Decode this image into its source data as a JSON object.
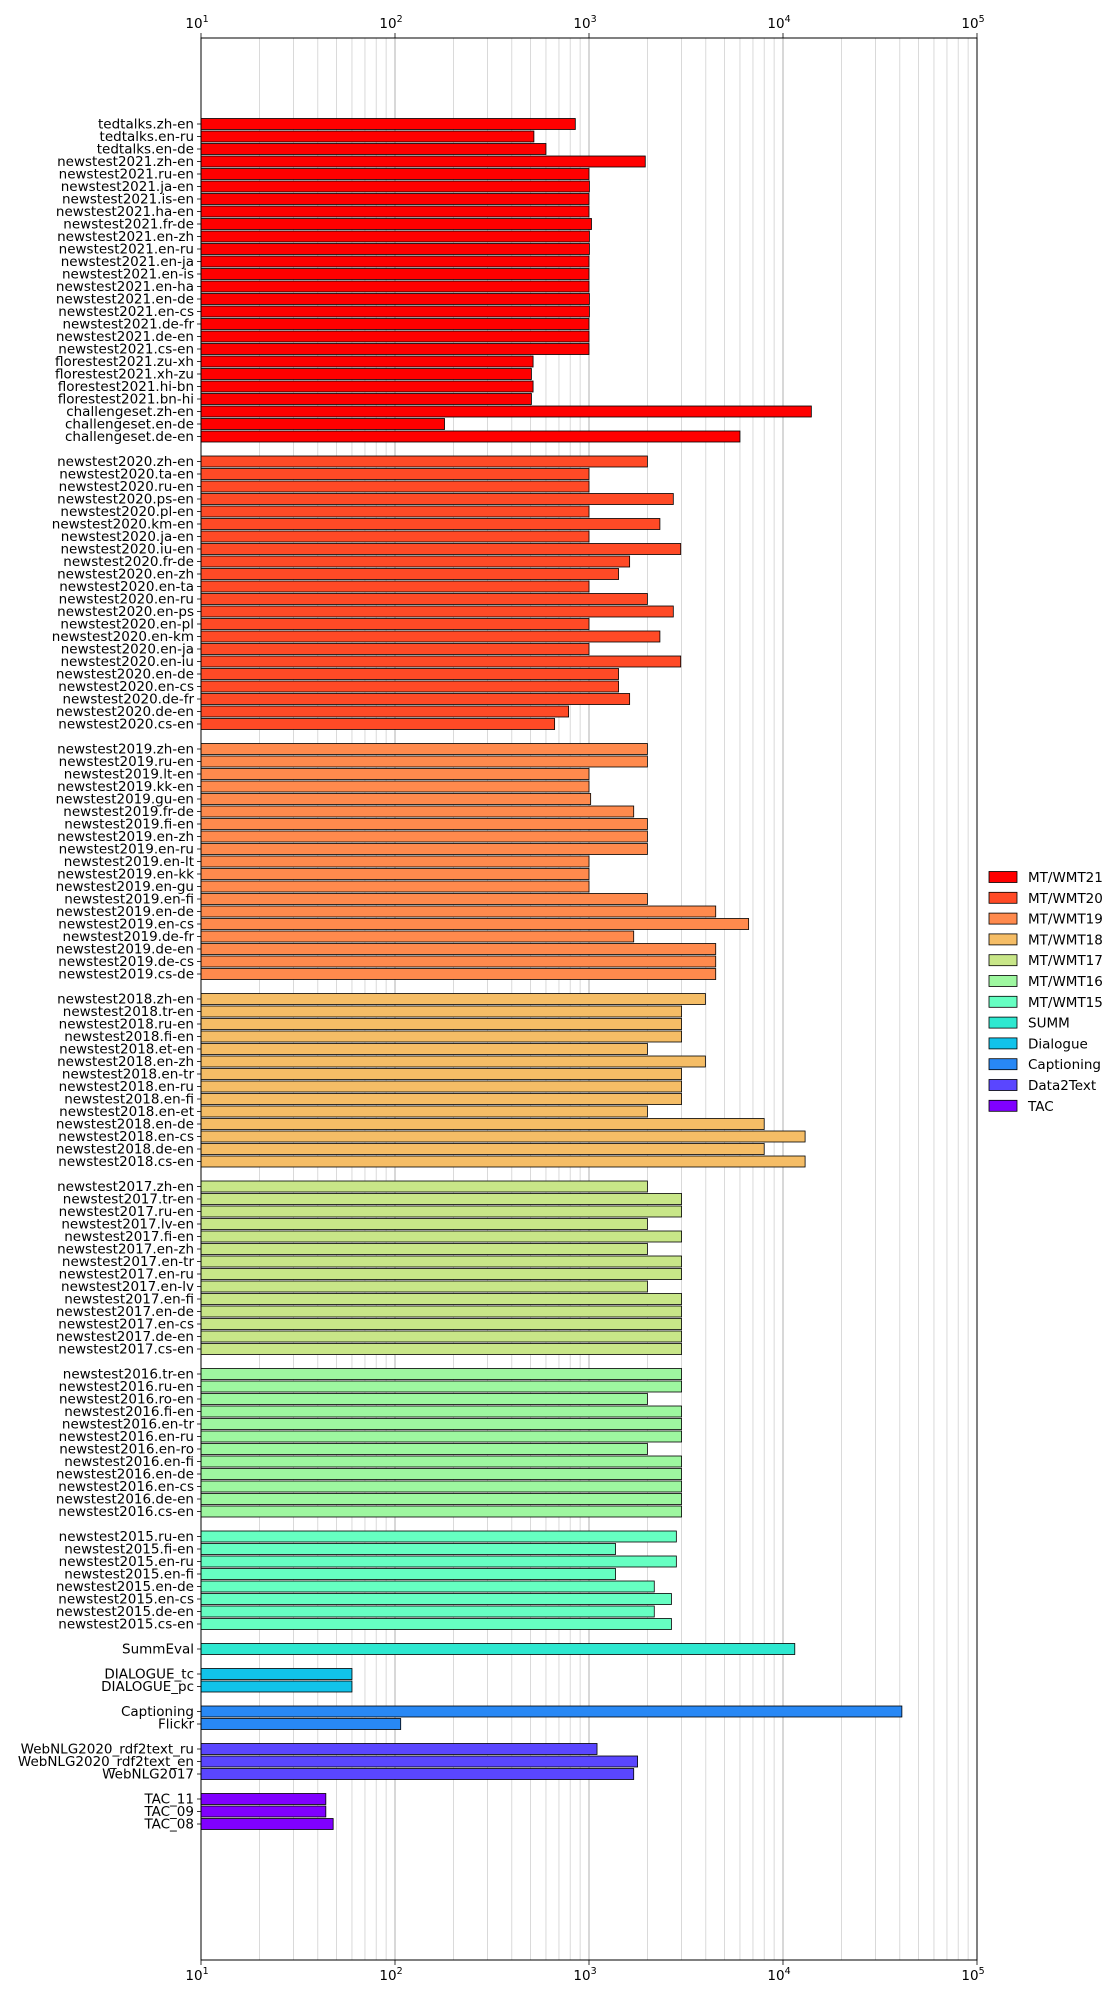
{
  "chart_data": {
    "type": "bar",
    "orientation": "horizontal",
    "x_scale": "log",
    "xlim": [
      10,
      100000
    ],
    "xticks": [
      10,
      100,
      1000,
      10000,
      100000
    ],
    "xtick_labels": [
      {
        "base": "10",
        "exp": "1"
      },
      {
        "base": "10",
        "exp": "2"
      },
      {
        "base": "10",
        "exp": "3"
      },
      {
        "base": "10",
        "exp": "4"
      },
      {
        "base": "10",
        "exp": "5"
      }
    ],
    "grid": "vertical",
    "legend_placement": "center-right",
    "groups": [
      {
        "name": "MT/WMT21",
        "color": "#ff0000",
        "items": [
          {
            "label": "tedtalks.zh-en",
            "value": 850
          },
          {
            "label": "tedtalks.en-ru",
            "value": 520
          },
          {
            "label": "tedtalks.en-de",
            "value": 600
          },
          {
            "label": "newstest2021.zh-en",
            "value": 1950
          },
          {
            "label": "newstest2021.ru-en",
            "value": 1000
          },
          {
            "label": "newstest2021.ja-en",
            "value": 1005
          },
          {
            "label": "newstest2021.is-en",
            "value": 1000
          },
          {
            "label": "newstest2021.ha-en",
            "value": 1000
          },
          {
            "label": "newstest2021.fr-de",
            "value": 1030
          },
          {
            "label": "newstest2021.en-zh",
            "value": 1005
          },
          {
            "label": "newstest2021.en-ru",
            "value": 1005
          },
          {
            "label": "newstest2021.en-ja",
            "value": 1000
          },
          {
            "label": "newstest2021.en-is",
            "value": 1000
          },
          {
            "label": "newstest2021.en-ha",
            "value": 1000
          },
          {
            "label": "newstest2021.en-de",
            "value": 1005
          },
          {
            "label": "newstest2021.en-cs",
            "value": 1005
          },
          {
            "label": "newstest2021.de-fr",
            "value": 1000
          },
          {
            "label": "newstest2021.de-en",
            "value": 1000
          },
          {
            "label": "newstest2021.cs-en",
            "value": 1000
          },
          {
            "label": "florestest2021.zu-xh",
            "value": 515
          },
          {
            "label": "florestest2021.xh-zu",
            "value": 505
          },
          {
            "label": "florestest2021.hi-bn",
            "value": 515
          },
          {
            "label": "florestest2021.bn-hi",
            "value": 505
          },
          {
            "label": "challengeset.zh-en",
            "value": 14000
          },
          {
            "label": "challengeset.en-de",
            "value": 180
          },
          {
            "label": "challengeset.de-en",
            "value": 6000
          }
        ]
      },
      {
        "name": "MT/WMT20",
        "color": "#ff4a26",
        "items": [
          {
            "label": "newstest2020.zh-en",
            "value": 2000
          },
          {
            "label": "newstest2020.ta-en",
            "value": 1000
          },
          {
            "label": "newstest2020.ru-en",
            "value": 1000
          },
          {
            "label": "newstest2020.ps-en",
            "value": 2720
          },
          {
            "label": "newstest2020.pl-en",
            "value": 1000
          },
          {
            "label": "newstest2020.km-en",
            "value": 2320
          },
          {
            "label": "newstest2020.ja-en",
            "value": 1000
          },
          {
            "label": "newstest2020.iu-en",
            "value": 2970
          },
          {
            "label": "newstest2020.fr-de",
            "value": 1620
          },
          {
            "label": "newstest2020.en-zh",
            "value": 1420
          },
          {
            "label": "newstest2020.en-ta",
            "value": 1000
          },
          {
            "label": "newstest2020.en-ru",
            "value": 2000
          },
          {
            "label": "newstest2020.en-ps",
            "value": 2720
          },
          {
            "label": "newstest2020.en-pl",
            "value": 1000
          },
          {
            "label": "newstest2020.en-km",
            "value": 2320
          },
          {
            "label": "newstest2020.en-ja",
            "value": 1000
          },
          {
            "label": "newstest2020.en-iu",
            "value": 2970
          },
          {
            "label": "newstest2020.en-de",
            "value": 1420
          },
          {
            "label": "newstest2020.en-cs",
            "value": 1420
          },
          {
            "label": "newstest2020.de-fr",
            "value": 1620
          },
          {
            "label": "newstest2020.de-en",
            "value": 785
          },
          {
            "label": "newstest2020.cs-en",
            "value": 665
          }
        ]
      },
      {
        "name": "MT/WMT19",
        "color": "#ff8a4d",
        "items": [
          {
            "label": "newstest2019.zh-en",
            "value": 2000
          },
          {
            "label": "newstest2019.ru-en",
            "value": 2000
          },
          {
            "label": "newstest2019.lt-en",
            "value": 1000
          },
          {
            "label": "newstest2019.kk-en",
            "value": 1000
          },
          {
            "label": "newstest2019.gu-en",
            "value": 1020
          },
          {
            "label": "newstest2019.fr-de",
            "value": 1700
          },
          {
            "label": "newstest2019.fi-en",
            "value": 2000
          },
          {
            "label": "newstest2019.en-zh",
            "value": 2000
          },
          {
            "label": "newstest2019.en-ru",
            "value": 2000
          },
          {
            "label": "newstest2019.en-lt",
            "value": 1000
          },
          {
            "label": "newstest2019.en-kk",
            "value": 1000
          },
          {
            "label": "newstest2019.en-gu",
            "value": 1000
          },
          {
            "label": "newstest2019.en-fi",
            "value": 2000
          },
          {
            "label": "newstest2019.en-de",
            "value": 4500
          },
          {
            "label": "newstest2019.en-cs",
            "value": 6650
          },
          {
            "label": "newstest2019.de-fr",
            "value": 1700
          },
          {
            "label": "newstest2019.de-en",
            "value": 4500
          },
          {
            "label": "newstest2019.de-cs",
            "value": 4500
          },
          {
            "label": "newstest2019.cs-de",
            "value": 4500
          }
        ]
      },
      {
        "name": "MT/WMT18",
        "color": "#f5bd66",
        "items": [
          {
            "label": "newstest2018.zh-en",
            "value": 3980
          },
          {
            "label": "newstest2018.tr-en",
            "value": 3000
          },
          {
            "label": "newstest2018.ru-en",
            "value": 3000
          },
          {
            "label": "newstest2018.fi-en",
            "value": 3000
          },
          {
            "label": "newstest2018.et-en",
            "value": 2000
          },
          {
            "label": "newstest2018.en-zh",
            "value": 3980
          },
          {
            "label": "newstest2018.en-tr",
            "value": 3000
          },
          {
            "label": "newstest2018.en-ru",
            "value": 3000
          },
          {
            "label": "newstest2018.en-fi",
            "value": 3000
          },
          {
            "label": "newstest2018.en-et",
            "value": 2000
          },
          {
            "label": "newstest2018.en-de",
            "value": 8000
          },
          {
            "label": "newstest2018.en-cs",
            "value": 13000
          },
          {
            "label": "newstest2018.de-en",
            "value": 8000
          },
          {
            "label": "newstest2018.cs-en",
            "value": 13000
          }
        ]
      },
      {
        "name": "MT/WMT17",
        "color": "#c8e688",
        "items": [
          {
            "label": "newstest2017.zh-en",
            "value": 2000
          },
          {
            "label": "newstest2017.tr-en",
            "value": 3000
          },
          {
            "label": "newstest2017.ru-en",
            "value": 3000
          },
          {
            "label": "newstest2017.lv-en",
            "value": 2000
          },
          {
            "label": "newstest2017.fi-en",
            "value": 3000
          },
          {
            "label": "newstest2017.en-zh",
            "value": 2000
          },
          {
            "label": "newstest2017.en-tr",
            "value": 3000
          },
          {
            "label": "newstest2017.en-ru",
            "value": 3000
          },
          {
            "label": "newstest2017.en-lv",
            "value": 2000
          },
          {
            "label": "newstest2017.en-fi",
            "value": 3000
          },
          {
            "label": "newstest2017.en-de",
            "value": 3000
          },
          {
            "label": "newstest2017.en-cs",
            "value": 3000
          },
          {
            "label": "newstest2017.de-en",
            "value": 3000
          },
          {
            "label": "newstest2017.cs-en",
            "value": 3000
          }
        ]
      },
      {
        "name": "MT/WMT16",
        "color": "#9ef7a0",
        "items": [
          {
            "label": "newstest2016.tr-en",
            "value": 3000
          },
          {
            "label": "newstest2016.ru-en",
            "value": 3000
          },
          {
            "label": "newstest2016.ro-en",
            "value": 2000
          },
          {
            "label": "newstest2016.fi-en",
            "value": 3000
          },
          {
            "label": "newstest2016.en-tr",
            "value": 3000
          },
          {
            "label": "newstest2016.en-ru",
            "value": 3000
          },
          {
            "label": "newstest2016.en-ro",
            "value": 2000
          },
          {
            "label": "newstest2016.en-fi",
            "value": 3000
          },
          {
            "label": "newstest2016.en-de",
            "value": 3000
          },
          {
            "label": "newstest2016.en-cs",
            "value": 3000
          },
          {
            "label": "newstest2016.de-en",
            "value": 3000
          },
          {
            "label": "newstest2016.cs-en",
            "value": 3000
          }
        ]
      },
      {
        "name": "MT/WMT15",
        "color": "#66ffc2",
        "items": [
          {
            "label": "newstest2015.ru-en",
            "value": 2820
          },
          {
            "label": "newstest2015.fi-en",
            "value": 1370
          },
          {
            "label": "newstest2015.en-ru",
            "value": 2820
          },
          {
            "label": "newstest2015.en-fi",
            "value": 1370
          },
          {
            "label": "newstest2015.en-de",
            "value": 2170
          },
          {
            "label": "newstest2015.en-cs",
            "value": 2660
          },
          {
            "label": "newstest2015.de-en",
            "value": 2170
          },
          {
            "label": "newstest2015.cs-en",
            "value": 2660
          }
        ]
      },
      {
        "name": "SUMM",
        "color": "#2ee8d0",
        "items": [
          {
            "label": "SummEval",
            "value": 11500
          }
        ]
      },
      {
        "name": "Dialogue",
        "color": "#11c3ea",
        "items": [
          {
            "label": "DIALOGUE_tc",
            "value": 60
          },
          {
            "label": "DIALOGUE_pc",
            "value": 60
          }
        ]
      },
      {
        "name": "Captioning",
        "color": "#2888f5",
        "items": [
          {
            "label": "Captioning",
            "value": 41000
          },
          {
            "label": "Flickr",
            "value": 107
          }
        ]
      },
      {
        "name": "Data2Text",
        "color": "#5a46ff",
        "items": [
          {
            "label": "WebNLG2020_rdf2text_ru",
            "value": 1100
          },
          {
            "label": "WebNLG2020_rdf2text_en",
            "value": 1780
          },
          {
            "label": "WebNLG2017",
            "value": 1700
          }
        ]
      },
      {
        "name": "TAC",
        "color": "#8000ff",
        "items": [
          {
            "label": "TAC_11",
            "value": 44
          },
          {
            "label": "TAC_09",
            "value": 44
          },
          {
            "label": "TAC_08",
            "value": 48
          }
        ]
      }
    ]
  }
}
